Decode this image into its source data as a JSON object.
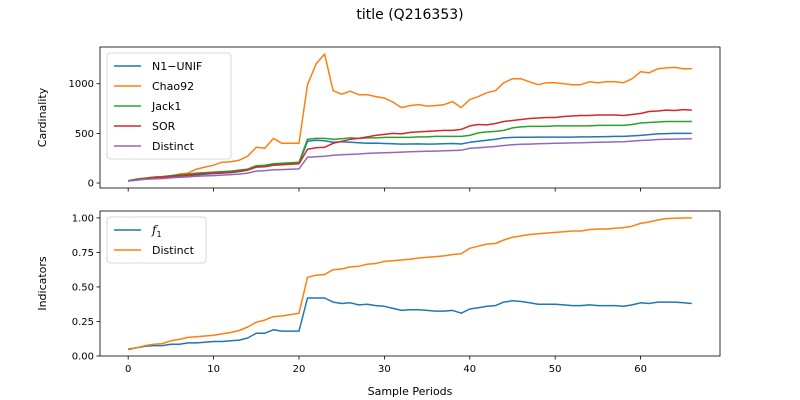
{
  "figure": {
    "title": "title (Q216353)"
  },
  "chart_data": [
    {
      "type": "line",
      "xlabel": "",
      "ylabel": "Cardinality",
      "xlim": [
        -3.3,
        69.3
      ],
      "ylim": [
        -50,
        1370
      ],
      "xticks": [
        0,
        10,
        20,
        30,
        40,
        50,
        60
      ],
      "xticklabels_visible": false,
      "yticks": [
        0,
        500,
        1000
      ],
      "ytick_labels": [
        "0",
        "500",
        "1000"
      ],
      "grid": false,
      "legend": "upper-left",
      "series": [
        {
          "name": "N1−UNIF",
          "color": "#1f77b4",
          "x": [
            0,
            1,
            2,
            3,
            4,
            5,
            6,
            7,
            8,
            9,
            10,
            11,
            12,
            13,
            14,
            15,
            16,
            17,
            18,
            19,
            20,
            21,
            22,
            23,
            24,
            25,
            26,
            27,
            28,
            29,
            30,
            31,
            32,
            33,
            34,
            35,
            36,
            37,
            38,
            39,
            40,
            41,
            42,
            43,
            44,
            45,
            46,
            47,
            48,
            49,
            50,
            51,
            52,
            53,
            54,
            55,
            56,
            57,
            58,
            59,
            60,
            61,
            62,
            63,
            64,
            65,
            66
          ],
          "values": [
            20,
            30,
            40,
            45,
            50,
            60,
            65,
            70,
            80,
            90,
            95,
            100,
            105,
            115,
            130,
            170,
            175,
            185,
            190,
            195,
            200,
            420,
            430,
            425,
            410,
            415,
            410,
            405,
            400,
            402,
            398,
            395,
            392,
            393,
            394,
            392,
            393,
            395,
            398,
            393,
            410,
            420,
            430,
            440,
            455,
            460,
            462,
            462,
            463,
            463,
            463,
            463,
            463,
            465,
            465,
            466,
            468,
            470,
            470,
            475,
            480,
            488,
            495,
            498,
            500,
            500,
            500
          ]
        },
        {
          "name": "Chao92",
          "color": "#ff7f0e",
          "x": [
            0,
            1,
            2,
            3,
            4,
            5,
            6,
            7,
            8,
            9,
            10,
            11,
            12,
            13,
            14,
            15,
            16,
            17,
            18,
            19,
            20,
            21,
            22,
            23,
            24,
            25,
            26,
            27,
            28,
            29,
            30,
            31,
            32,
            33,
            34,
            35,
            36,
            37,
            38,
            39,
            40,
            41,
            42,
            43,
            44,
            45,
            46,
            47,
            48,
            49,
            50,
            51,
            52,
            53,
            54,
            55,
            56,
            57,
            58,
            59,
            60,
            61,
            62,
            63,
            64,
            65,
            66
          ],
          "values": [
            20,
            40,
            50,
            60,
            65,
            70,
            90,
            100,
            140,
            160,
            180,
            210,
            215,
            230,
            270,
            360,
            350,
            450,
            400,
            400,
            400,
            990,
            1200,
            1300,
            930,
            895,
            925,
            890,
            890,
            870,
            855,
            815,
            760,
            780,
            790,
            775,
            780,
            790,
            820,
            760,
            840,
            870,
            910,
            930,
            1010,
            1050,
            1050,
            1020,
            990,
            1010,
            1010,
            1000,
            990,
            990,
            1020,
            1010,
            1020,
            1020,
            1010,
            1050,
            1120,
            1110,
            1150,
            1160,
            1165,
            1150,
            1150
          ]
        },
        {
          "name": "Jack1",
          "color": "#2ca02c",
          "x": [
            0,
            1,
            2,
            3,
            4,
            5,
            6,
            7,
            8,
            9,
            10,
            11,
            12,
            13,
            14,
            15,
            16,
            17,
            18,
            19,
            20,
            21,
            22,
            23,
            24,
            25,
            26,
            27,
            28,
            29,
            30,
            31,
            32,
            33,
            34,
            35,
            36,
            37,
            38,
            39,
            40,
            41,
            42,
            43,
            44,
            45,
            46,
            47,
            48,
            49,
            50,
            51,
            52,
            53,
            54,
            55,
            56,
            57,
            58,
            59,
            60,
            61,
            62,
            63,
            64,
            65,
            66
          ],
          "values": [
            25,
            40,
            50,
            60,
            65,
            75,
            85,
            90,
            100,
            105,
            110,
            115,
            120,
            130,
            140,
            175,
            180,
            195,
            200,
            205,
            210,
            440,
            450,
            450,
            440,
            445,
            455,
            450,
            455,
            455,
            460,
            460,
            460,
            460,
            465,
            465,
            470,
            470,
            470,
            470,
            480,
            505,
            515,
            520,
            530,
            555,
            565,
            570,
            570,
            570,
            575,
            575,
            575,
            575,
            575,
            580,
            580,
            580,
            580,
            590,
            605,
            610,
            615,
            620,
            620,
            620,
            620
          ]
        },
        {
          "name": "SOR",
          "color": "#d62728",
          "x": [
            0,
            1,
            2,
            3,
            4,
            5,
            6,
            7,
            8,
            9,
            10,
            11,
            12,
            13,
            14,
            15,
            16,
            17,
            18,
            19,
            20,
            21,
            22,
            23,
            24,
            25,
            26,
            27,
            28,
            29,
            30,
            31,
            32,
            33,
            34,
            35,
            36,
            37,
            38,
            39,
            40,
            41,
            42,
            43,
            44,
            45,
            46,
            47,
            48,
            49,
            50,
            51,
            52,
            53,
            54,
            55,
            56,
            57,
            58,
            59,
            60,
            61,
            62,
            63,
            64,
            65,
            66
          ],
          "values": [
            20,
            35,
            45,
            55,
            60,
            70,
            75,
            80,
            90,
            95,
            100,
            105,
            110,
            120,
            130,
            160,
            165,
            180,
            185,
            190,
            195,
            340,
            355,
            360,
            400,
            420,
            440,
            450,
            465,
            480,
            490,
            500,
            495,
            510,
            515,
            520,
            525,
            530,
            530,
            540,
            575,
            590,
            585,
            600,
            620,
            630,
            640,
            650,
            655,
            660,
            660,
            670,
            675,
            680,
            680,
            685,
            685,
            685,
            680,
            690,
            700,
            720,
            725,
            735,
            730,
            740,
            735
          ]
        },
        {
          "name": "Distinct",
          "color": "#9467bd",
          "x": [
            0,
            1,
            2,
            3,
            4,
            5,
            6,
            7,
            8,
            9,
            10,
            11,
            12,
            13,
            14,
            15,
            16,
            17,
            18,
            19,
            20,
            21,
            22,
            23,
            24,
            25,
            26,
            27,
            28,
            29,
            30,
            31,
            32,
            33,
            34,
            35,
            36,
            37,
            38,
            39,
            40,
            41,
            42,
            43,
            44,
            45,
            46,
            47,
            48,
            49,
            50,
            51,
            52,
            53,
            54,
            55,
            56,
            57,
            58,
            59,
            60,
            61,
            62,
            63,
            64,
            65,
            66
          ],
          "values": [
            20,
            30,
            38,
            42,
            45,
            52,
            58,
            62,
            68,
            72,
            75,
            80,
            85,
            90,
            100,
            120,
            125,
            132,
            135,
            138,
            142,
            260,
            265,
            270,
            280,
            285,
            288,
            292,
            298,
            302,
            305,
            308,
            312,
            315,
            318,
            320,
            322,
            325,
            328,
            330,
            350,
            355,
            362,
            368,
            378,
            385,
            390,
            392,
            395,
            398,
            400,
            402,
            404,
            405,
            408,
            410,
            412,
            414,
            416,
            422,
            428,
            432,
            438,
            440,
            442,
            444,
            445
          ]
        }
      ]
    },
    {
      "type": "line",
      "xlabel": "Sample Periods",
      "ylabel": "Indicators",
      "xlim": [
        -3.3,
        69.3
      ],
      "ylim": [
        0,
        1.05
      ],
      "xticks": [
        0,
        10,
        20,
        30,
        40,
        50,
        60
      ],
      "xtick_labels": [
        "0",
        "10",
        "20",
        "30",
        "40",
        "50",
        "60"
      ],
      "yticks": [
        0,
        0.25,
        0.5,
        0.75,
        1.0
      ],
      "ytick_labels": [
        "0.00",
        "0.25",
        "0.50",
        "0.75",
        "1.00"
      ],
      "grid": false,
      "legend": "upper-left",
      "series": [
        {
          "name": "f₁",
          "label_main": "f",
          "label_sub": "1",
          "color": "#1f77b4",
          "x": [
            0,
            1,
            2,
            3,
            4,
            5,
            6,
            7,
            8,
            9,
            10,
            11,
            12,
            13,
            14,
            15,
            16,
            17,
            18,
            19,
            20,
            21,
            22,
            23,
            24,
            25,
            26,
            27,
            28,
            29,
            30,
            31,
            32,
            33,
            34,
            35,
            36,
            37,
            38,
            39,
            40,
            41,
            42,
            43,
            44,
            45,
            46,
            47,
            48,
            49,
            50,
            51,
            52,
            53,
            54,
            55,
            56,
            57,
            58,
            59,
            60,
            61,
            62,
            63,
            64,
            65,
            66
          ],
          "values": [
            0.05,
            0.06,
            0.07,
            0.075,
            0.075,
            0.085,
            0.085,
            0.095,
            0.095,
            0.1,
            0.105,
            0.105,
            0.11,
            0.115,
            0.13,
            0.165,
            0.165,
            0.19,
            0.18,
            0.18,
            0.18,
            0.42,
            0.42,
            0.42,
            0.39,
            0.38,
            0.385,
            0.37,
            0.375,
            0.365,
            0.36,
            0.345,
            0.33,
            0.335,
            0.335,
            0.33,
            0.325,
            0.325,
            0.33,
            0.31,
            0.34,
            0.35,
            0.36,
            0.365,
            0.39,
            0.4,
            0.395,
            0.385,
            0.375,
            0.375,
            0.375,
            0.37,
            0.365,
            0.365,
            0.37,
            0.365,
            0.365,
            0.365,
            0.36,
            0.37,
            0.385,
            0.38,
            0.39,
            0.39,
            0.39,
            0.385,
            0.38
          ]
        },
        {
          "name": "Distinct",
          "color": "#ff7f0e",
          "x": [
            0,
            1,
            2,
            3,
            4,
            5,
            6,
            7,
            8,
            9,
            10,
            11,
            12,
            13,
            14,
            15,
            16,
            17,
            18,
            19,
            20,
            21,
            22,
            23,
            24,
            25,
            26,
            27,
            28,
            29,
            30,
            31,
            32,
            33,
            34,
            35,
            36,
            37,
            38,
            39,
            40,
            41,
            42,
            43,
            44,
            45,
            46,
            47,
            48,
            49,
            50,
            51,
            52,
            53,
            54,
            55,
            56,
            57,
            58,
            59,
            60,
            61,
            62,
            63,
            64,
            65,
            66
          ],
          "values": [
            0.045,
            0.06,
            0.075,
            0.085,
            0.09,
            0.11,
            0.12,
            0.135,
            0.14,
            0.145,
            0.15,
            0.16,
            0.17,
            0.185,
            0.21,
            0.245,
            0.26,
            0.285,
            0.29,
            0.3,
            0.31,
            0.57,
            0.585,
            0.59,
            0.625,
            0.63,
            0.645,
            0.65,
            0.665,
            0.67,
            0.685,
            0.69,
            0.695,
            0.7,
            0.71,
            0.715,
            0.72,
            0.725,
            0.735,
            0.74,
            0.78,
            0.795,
            0.81,
            0.815,
            0.84,
            0.86,
            0.87,
            0.88,
            0.885,
            0.89,
            0.895,
            0.9,
            0.905,
            0.905,
            0.915,
            0.92,
            0.92,
            0.925,
            0.93,
            0.94,
            0.96,
            0.97,
            0.985,
            0.995,
            0.997,
            0.999,
            1.0
          ]
        }
      ]
    }
  ]
}
